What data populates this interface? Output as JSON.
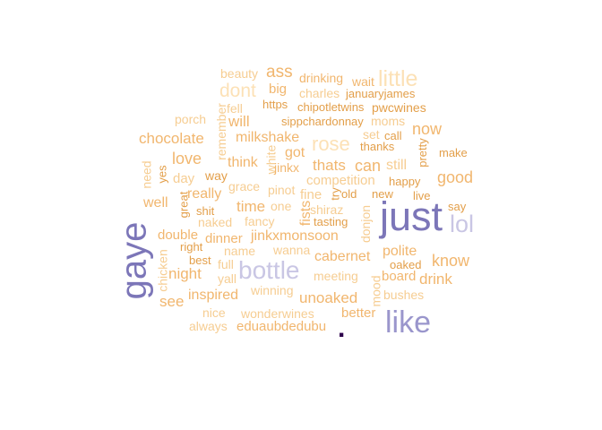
{
  "colors": {
    "lightest": "#fce1b6",
    "light": "#f6cd92",
    "mid": "#f1b66e",
    "dark": "#e39f4a",
    "accent": "#c9c6e4",
    "purple": "#9a96cc",
    "strong": "#7c76b8",
    "darkest": "#2d004b"
  },
  "words": [
    {
      "text": "beauty",
      "color": "light"
    },
    {
      "text": "ass",
      "color": "mid"
    },
    {
      "text": "drinking",
      "color": "mid"
    },
    {
      "text": "little",
      "color": "lightest"
    },
    {
      "text": "wait",
      "color": "mid"
    },
    {
      "text": "dont",
      "color": "lightest"
    },
    {
      "text": "big",
      "color": "mid"
    },
    {
      "text": "charles",
      "color": "light"
    },
    {
      "text": "januaryjames",
      "color": "dark"
    },
    {
      "text": "fell",
      "color": "light"
    },
    {
      "text": "https",
      "color": "dark"
    },
    {
      "text": "chipotletwins",
      "color": "dark"
    },
    {
      "text": "pwcwines",
      "color": "dark"
    },
    {
      "text": "porch",
      "color": "light"
    },
    {
      "text": "will",
      "color": "mid"
    },
    {
      "text": "sippchardonnay",
      "color": "dark"
    },
    {
      "text": "moms",
      "color": "light"
    },
    {
      "text": "remember",
      "color": "light"
    },
    {
      "text": "now",
      "color": "mid"
    },
    {
      "text": "chocolate",
      "color": "mid"
    },
    {
      "text": "milkshake",
      "color": "mid"
    },
    {
      "text": "rose",
      "color": "lightest"
    },
    {
      "text": "set",
      "color": "light"
    },
    {
      "text": "call",
      "color": "dark"
    },
    {
      "text": "thanks",
      "color": "dark"
    },
    {
      "text": "white",
      "color": "light"
    },
    {
      "text": "pretty",
      "color": "dark"
    },
    {
      "text": "make",
      "color": "dark"
    },
    {
      "text": "love",
      "color": "mid"
    },
    {
      "text": "think",
      "color": "mid"
    },
    {
      "text": "got",
      "color": "mid"
    },
    {
      "text": "jinkx",
      "color": "mid"
    },
    {
      "text": "thats",
      "color": "mid"
    },
    {
      "text": "can",
      "color": "mid"
    },
    {
      "text": "still",
      "color": "light"
    },
    {
      "text": "need",
      "color": "light"
    },
    {
      "text": "yes",
      "color": "dark"
    },
    {
      "text": "day",
      "color": "light"
    },
    {
      "text": "way",
      "color": "dark"
    },
    {
      "text": "competition",
      "color": "light"
    },
    {
      "text": "happy",
      "color": "dark"
    },
    {
      "text": "good",
      "color": "mid"
    },
    {
      "text": "grace",
      "color": "light"
    },
    {
      "text": "pinot",
      "color": "light"
    },
    {
      "text": "fine",
      "color": "light"
    },
    {
      "text": "try",
      "color": "dark"
    },
    {
      "text": "old",
      "color": "dark"
    },
    {
      "text": "new",
      "color": "dark"
    },
    {
      "text": "live",
      "color": "dark"
    },
    {
      "text": "really",
      "color": "mid"
    },
    {
      "text": "well",
      "color": "mid"
    },
    {
      "text": "great",
      "color": "dark"
    },
    {
      "text": "time",
      "color": "mid"
    },
    {
      "text": "one",
      "color": "light"
    },
    {
      "text": "fists",
      "color": "mid"
    },
    {
      "text": "shiraz",
      "color": "light"
    },
    {
      "text": "just",
      "color": "strong"
    },
    {
      "text": "say",
      "color": "dark"
    },
    {
      "text": "shit",
      "color": "dark"
    },
    {
      "text": "naked",
      "color": "light"
    },
    {
      "text": "fancy",
      "color": "light"
    },
    {
      "text": "tasting",
      "color": "dark"
    },
    {
      "text": "donjon",
      "color": "light"
    },
    {
      "text": "lol",
      "color": "accent"
    },
    {
      "text": "gaye",
      "color": "strong"
    },
    {
      "text": "double",
      "color": "mid"
    },
    {
      "text": "dinner",
      "color": "mid"
    },
    {
      "text": "jinkxmonsoon",
      "color": "mid"
    },
    {
      "text": "right",
      "color": "dark"
    },
    {
      "text": "name",
      "color": "light"
    },
    {
      "text": "wanna",
      "color": "light"
    },
    {
      "text": "polite",
      "color": "mid"
    },
    {
      "text": "chicken",
      "color": "light"
    },
    {
      "text": "cabernet",
      "color": "mid"
    },
    {
      "text": "best",
      "color": "dark"
    },
    {
      "text": "full",
      "color": "light"
    },
    {
      "text": "know",
      "color": "mid"
    },
    {
      "text": "oaked",
      "color": "dark"
    },
    {
      "text": "night",
      "color": "mid"
    },
    {
      "text": "bottle",
      "color": "accent"
    },
    {
      "text": "mood",
      "color": "light"
    },
    {
      "text": "yall",
      "color": "light"
    },
    {
      "text": "meeting",
      "color": "light"
    },
    {
      "text": "board",
      "color": "mid"
    },
    {
      "text": "drink",
      "color": "mid"
    },
    {
      "text": "winning",
      "color": "light"
    },
    {
      "text": "bushes",
      "color": "light"
    },
    {
      "text": "inspired",
      "color": "mid"
    },
    {
      "text": "see",
      "color": "mid"
    },
    {
      "text": "unoaked",
      "color": "mid"
    },
    {
      "text": "nice",
      "color": "light"
    },
    {
      "text": "wonderwines",
      "color": "light"
    },
    {
      "text": "better",
      "color": "mid"
    },
    {
      "text": "like",
      "color": "purple"
    },
    {
      "text": "always",
      "color": "light"
    },
    {
      "text": "eduaubdedubu",
      "color": "mid"
    },
    {
      "text": ".",
      "color": "darkest"
    }
  ]
}
